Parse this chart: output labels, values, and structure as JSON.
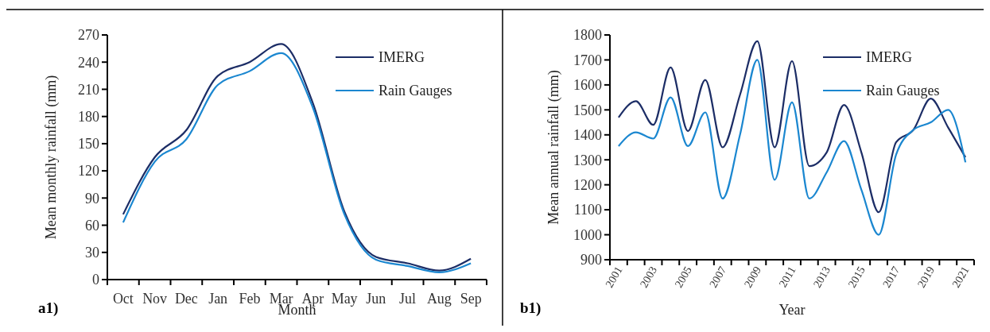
{
  "chart_data": [
    {
      "type": "line",
      "xlabel": "Month",
      "ylabel": "Mean monthly rainfall (mm)",
      "categories": [
        "Oct",
        "Nov",
        "Dec",
        "Jan",
        "Feb",
        "Mar",
        "Apr",
        "May",
        "Jun",
        "Jul",
        "Aug",
        "Sep"
      ],
      "series": [
        {
          "name": "IMERG",
          "color": "#1c2d66",
          "values": [
            72,
            135,
            165,
            225,
            240,
            260,
            195,
            75,
            25,
            18,
            10,
            23
          ]
        },
        {
          "name": "Rain Gauges",
          "color": "#1b87d0",
          "values": [
            63,
            130,
            155,
            215,
            230,
            250,
            190,
            72,
            22,
            15,
            8,
            18
          ]
        }
      ],
      "ylim": [
        0,
        270
      ],
      "yticks": [
        0,
        30,
        60,
        90,
        120,
        150,
        180,
        210,
        240,
        270
      ],
      "grid": false,
      "legend": "top right",
      "annotations": [
        "a1)"
      ]
    },
    {
      "type": "line",
      "xlabel": "Year",
      "ylabel": "Mean annual rainfall (mm)",
      "categories": [
        "2001",
        null,
        "2003",
        null,
        "2005",
        null,
        "2007",
        null,
        "2009",
        null,
        "2011",
        null,
        "2013",
        null,
        "2015",
        null,
        "2017",
        null,
        "2019",
        null,
        "2021"
      ],
      "series": [
        {
          "name": "IMERG",
          "color": "#1c2d66",
          "values": [
            1470,
            1535,
            1440,
            1670,
            1415,
            1620,
            1350,
            1560,
            1775,
            1350,
            1695,
            1275,
            1330,
            1520,
            1330,
            1090,
            1370,
            1420,
            1545,
            1430,
            1310
          ]
        },
        {
          "name": "Rain Gauges",
          "color": "#1b87d0",
          "values": [
            1355,
            1410,
            1385,
            1550,
            1355,
            1490,
            1145,
            1400,
            1700,
            1220,
            1530,
            1145,
            1250,
            1375,
            1180,
            1000,
            1320,
            1420,
            1450,
            1500,
            1290
          ]
        }
      ],
      "ylim": [
        900,
        1800
      ],
      "yticks": [
        900,
        1000,
        1100,
        1200,
        1300,
        1400,
        1500,
        1600,
        1700,
        1800
      ],
      "grid": false,
      "legend": "top right",
      "annotations": [
        "b1)"
      ]
    }
  ]
}
